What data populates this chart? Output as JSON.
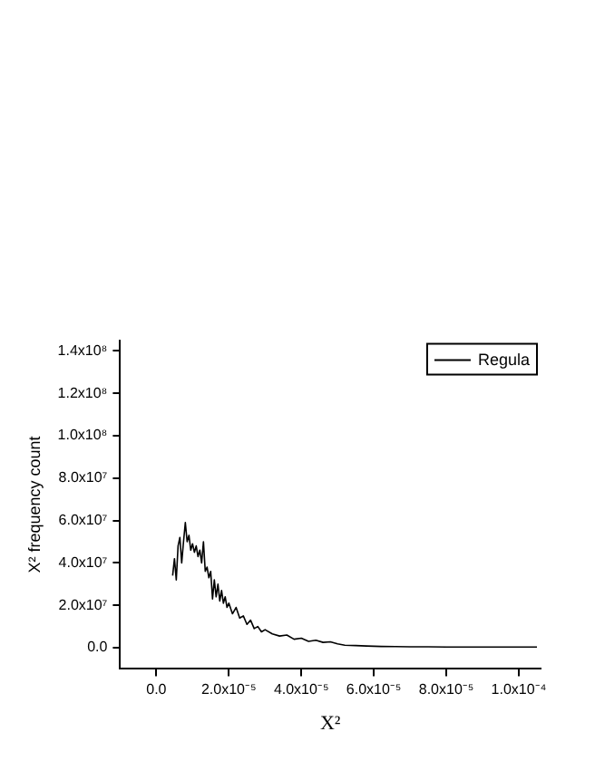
{
  "chart_data": {
    "type": "line",
    "xlabel": "X²",
    "ylabel": "X² frequency count",
    "legend": "top right",
    "grid": false,
    "marker": "none",
    "line_style": "solid",
    "xlim": [
      -1e-05,
      0.000106
    ],
    "ylim": [
      -10000000.0,
      145000000.0
    ],
    "xticks": [
      {
        "value": 0,
        "label": "0.0"
      },
      {
        "value": 2e-05,
        "label": "2.0x10⁻⁵"
      },
      {
        "value": 4e-05,
        "label": "4.0x10⁻⁵"
      },
      {
        "value": 6e-05,
        "label": "6.0x10⁻⁵"
      },
      {
        "value": 8e-05,
        "label": "8.0x10⁻⁵"
      },
      {
        "value": 0.0001,
        "label": "1.0x10⁻⁴"
      }
    ],
    "yticks": [
      {
        "value": 0,
        "label": "0.0"
      },
      {
        "value": 20000000.0,
        "label": "2.0x10⁷"
      },
      {
        "value": 40000000.0,
        "label": "4.0x10⁷"
      },
      {
        "value": 60000000.0,
        "label": "6.0x10⁷"
      },
      {
        "value": 80000000.0,
        "label": "8.0x10⁷"
      },
      {
        "value": 100000000.0,
        "label": "1.0x10⁸"
      },
      {
        "value": 120000000.0,
        "label": "1.2x10⁸"
      },
      {
        "value": 140000000.0,
        "label": "1.4x10⁸"
      }
    ],
    "series": [
      {
        "name": "Regula",
        "color": "#000000",
        "x": [
          4.5e-06,
          5e-06,
          5.5e-06,
          6e-06,
          6.5e-06,
          7e-06,
          7.5e-06,
          8e-06,
          8.5e-06,
          9e-06,
          9.5e-06,
          1e-05,
          1.05e-05,
          1.1e-05,
          1.15e-05,
          1.2e-05,
          1.25e-05,
          1.3e-05,
          1.35e-05,
          1.4e-05,
          1.45e-05,
          1.5e-05,
          1.55e-05,
          1.6e-05,
          1.65e-05,
          1.7e-05,
          1.75e-05,
          1.8e-05,
          1.85e-05,
          1.9e-05,
          1.95e-05,
          2e-05,
          2.1e-05,
          2.2e-05,
          2.3e-05,
          2.4e-05,
          2.5e-05,
          2.6e-05,
          2.7e-05,
          2.8e-05,
          2.9e-05,
          3e-05,
          3.2e-05,
          3.4e-05,
          3.6e-05,
          3.8e-05,
          4e-05,
          4.2e-05,
          4.4e-05,
          4.6e-05,
          4.8e-05,
          5e-05,
          5.2e-05,
          5.5e-05,
          5.8e-05,
          6.2e-05,
          6.6e-05,
          7e-05,
          7.5e-05,
          8e-05,
          8.5e-05,
          9e-05,
          9.5e-05,
          0.0001,
          0.000105
        ],
        "values": [
          34000000.0,
          42000000.0,
          32000000.0,
          48000000.0,
          52000000.0,
          40000000.0,
          50000000.0,
          59000000.0,
          50000000.0,
          53000000.0,
          46000000.0,
          49000000.0,
          45000000.0,
          48000000.0,
          43000000.0,
          46000000.0,
          40000000.0,
          50000000.0,
          36000000.0,
          38000000.0,
          33000000.0,
          36000000.0,
          23000000.0,
          32000000.0,
          24000000.0,
          30000000.0,
          22000000.0,
          27000000.0,
          21000000.0,
          24000000.0,
          19000000.0,
          21000000.0,
          16000000.0,
          19000000.0,
          14000000.0,
          15000000.0,
          11000000.0,
          13000000.0,
          9000000.0,
          10000000.0,
          7500000.0,
          8500000.0,
          6500000.0,
          5500000.0,
          6000000.0,
          4000000.0,
          4500000.0,
          3000000.0,
          3500000.0,
          2500000.0,
          2800000.0,
          1800000.0,
          1200000.0,
          1000000.0,
          800000.0,
          600000.0,
          500000.0,
          400000.0,
          400000.0,
          300000.0,
          300000.0,
          300000.0,
          300000.0,
          300000.0,
          300000.0
        ]
      }
    ]
  }
}
